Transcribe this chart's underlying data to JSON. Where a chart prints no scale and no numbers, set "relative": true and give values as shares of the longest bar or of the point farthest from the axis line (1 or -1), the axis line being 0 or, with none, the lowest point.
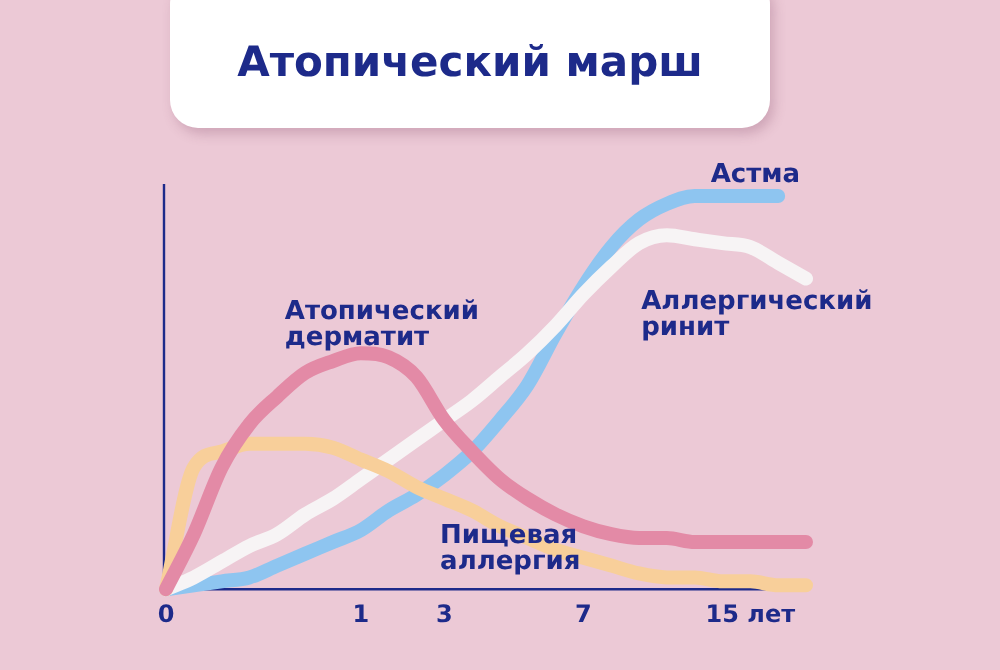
{
  "chart_data": {
    "type": "line",
    "title": "Атопический марш",
    "relative": true,
    "legend": false,
    "grid": false,
    "marker": "none",
    "line_style": "solid",
    "categories": [
      "0",
      null,
      null,
      null,
      null,
      null,
      null,
      "1",
      null,
      null,
      "3",
      null,
      null,
      null,
      null,
      "7",
      null,
      null,
      null,
      null,
      null,
      "15 лет",
      null,
      null
    ],
    "series": [
      {
        "name": "Атопический дерматит",
        "color": "#e38aa6",
        "values": [
          0,
          0.14,
          0.31,
          0.42,
          0.49,
          0.55,
          0.58,
          0.6,
          0.59,
          0.54,
          0.43,
          0.35,
          0.28,
          0.23,
          0.19,
          0.16,
          0.14,
          0.13,
          0.13,
          0.12,
          0.12,
          0.12,
          0.12,
          0.12
        ]
      },
      {
        "name": "Пищевая аллергия",
        "color": "#f8cf9a",
        "values": [
          0,
          0.31,
          0.35,
          0.37,
          0.37,
          0.37,
          0.36,
          0.33,
          0.3,
          0.26,
          0.23,
          0.2,
          0.16,
          0.13,
          0.1,
          0.08,
          0.06,
          0.04,
          0.03,
          0.03,
          0.02,
          0.02,
          0.01,
          0.01
        ]
      },
      {
        "name": "Аллергический ринит",
        "color": "#f7f4f5",
        "values": [
          0,
          0.03,
          0.07,
          0.11,
          0.14,
          0.19,
          0.23,
          0.28,
          0.33,
          0.38,
          0.43,
          0.48,
          0.54,
          0.6,
          0.67,
          0.75,
          0.82,
          0.88,
          0.9,
          0.89,
          0.88,
          0.87,
          0.83,
          0.79
        ]
      },
      {
        "name": "Астма",
        "color": "#8ec5f0",
        "values": [
          0,
          0.01,
          0.02,
          0.03,
          0.06,
          0.09,
          0.12,
          0.15,
          0.2,
          0.24,
          0.29,
          0.35,
          0.43,
          0.52,
          0.65,
          0.77,
          0.87,
          0.94,
          0.98,
          1,
          1,
          1,
          1,
          null
        ]
      }
    ]
  }
}
